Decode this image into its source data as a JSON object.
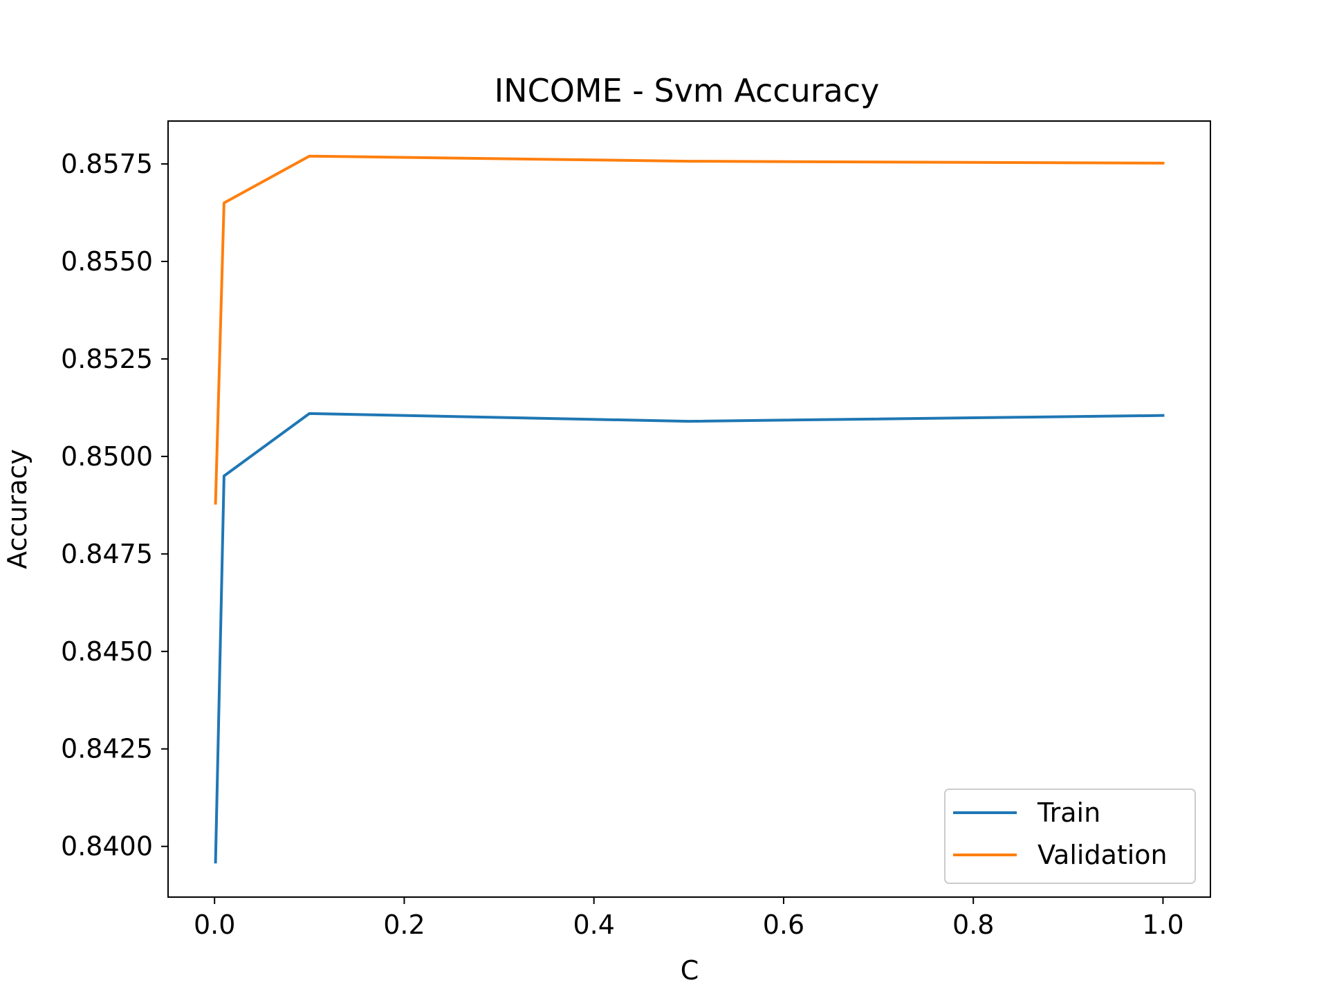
{
  "chart_data": {
    "type": "line",
    "title": "INCOME - Svm Accuracy",
    "xlabel": "C",
    "ylabel": "Accuracy",
    "x": [
      0.001,
      0.01,
      0.1,
      0.5,
      1.0
    ],
    "series": [
      {
        "name": "Train",
        "color": "#1f77b4",
        "values": [
          0.8396,
          0.8495,
          0.8511,
          0.8509,
          0.85105
        ]
      },
      {
        "name": "Validation",
        "color": "#ff7f0e",
        "values": [
          0.8488,
          0.8565,
          0.8577,
          0.85757,
          0.85752
        ]
      }
    ],
    "xlim": [
      -0.049,
      1.05
    ],
    "ylim": [
      0.8387,
      0.8586
    ],
    "xticks": [
      0.0,
      0.2,
      0.4,
      0.6,
      0.8,
      1.0
    ],
    "xtick_labels": [
      "0.0",
      "0.2",
      "0.4",
      "0.6",
      "0.8",
      "1.0"
    ],
    "yticks": [
      0.84,
      0.8425,
      0.845,
      0.8475,
      0.85,
      0.8525,
      0.855,
      0.8575
    ],
    "ytick_labels": [
      "0.8400",
      "0.8425",
      "0.8450",
      "0.8475",
      "0.8500",
      "0.8525",
      "0.8550",
      "0.8575"
    ],
    "grid": false,
    "legend_position": "lower-right"
  }
}
